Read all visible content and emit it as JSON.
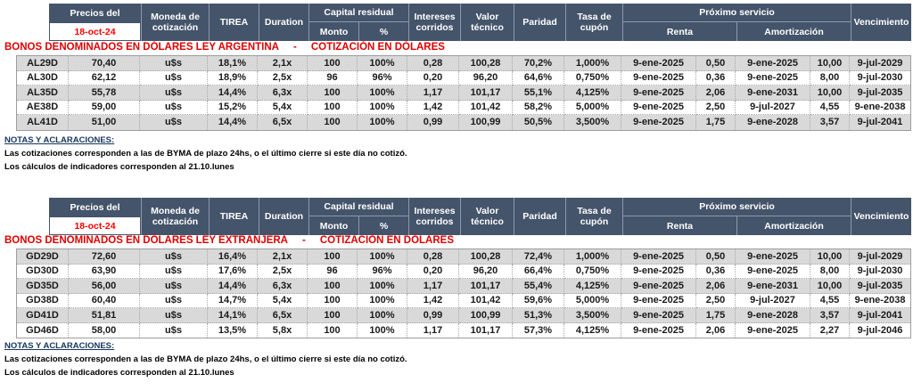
{
  "header": {
    "precios_label": "Precios del",
    "date": "18-oct-24",
    "moneda": "Moneda de cotización",
    "tirea": "TIREA",
    "duration": "Duration",
    "capital_residual": "Capital residual",
    "monto": "Monto",
    "pct": "%",
    "intereses": "Intereses corridos",
    "valor_tecnico": "Valor técnico",
    "paridad": "Paridad",
    "tasa_cupon": "Tasa de cupón",
    "proximo_servicio": "Próximo servicio",
    "renta": "Renta",
    "amortizacion": "Amortización",
    "vencimiento": "Vencimiento"
  },
  "colors": {
    "header_bg": "#44546A",
    "title_red": "#E00000",
    "date_red": "#FF0000",
    "row_band": "#D9D9D9"
  },
  "tables": [
    {
      "title_left": "BONOS DENOMINADOS EN DÓLARES LEY ARGENTINA",
      "title_sep": "-",
      "title_right": "COTIZACIÓN EN DÓLARES",
      "rows": [
        [
          "AL29D",
          "70,40",
          "u$s",
          "18,1%",
          "2,1x",
          "100",
          "100%",
          "0,28",
          "100,28",
          "70,2%",
          "1,000%",
          "9-ene-2025",
          "0,50",
          "9-ene-2025",
          "10,00",
          "9-jul-2029"
        ],
        [
          "AL30D",
          "62,12",
          "u$s",
          "18,9%",
          "2,5x",
          "96",
          "96%",
          "0,20",
          "96,20",
          "64,6%",
          "0,750%",
          "9-ene-2025",
          "0,36",
          "9-ene-2025",
          "8,00",
          "9-jul-2030"
        ],
        [
          "AL35D",
          "55,78",
          "u$s",
          "14,4%",
          "6,3x",
          "100",
          "100%",
          "1,17",
          "101,17",
          "55,1%",
          "4,125%",
          "9-ene-2025",
          "2,06",
          "9-ene-2031",
          "10,00",
          "9-jul-2035"
        ],
        [
          "AE38D",
          "59,00",
          "u$s",
          "15,2%",
          "5,4x",
          "100",
          "100%",
          "1,42",
          "101,42",
          "58,2%",
          "5,000%",
          "9-ene-2025",
          "2,50",
          "9-jul-2027",
          "4,55",
          "9-ene-2038"
        ],
        [
          "AL41D",
          "51,00",
          "u$s",
          "14,4%",
          "6,5x",
          "100",
          "100%",
          "0,99",
          "100,99",
          "50,5%",
          "3,500%",
          "9-ene-2025",
          "1,75",
          "9-ene-2028",
          "3,57",
          "9-jul-2041"
        ]
      ]
    },
    {
      "title_left": "BONOS DENOMINADOS EN DÓLARES LEY EXTRANJERA",
      "title_sep": "-",
      "title_right": "COTIZACIÓN EN DÓLARES",
      "rows": [
        [
          "GD29D",
          "72,60",
          "u$s",
          "16,4%",
          "2,1x",
          "100",
          "100%",
          "0,28",
          "100,28",
          "72,4%",
          "1,000%",
          "9-ene-2025",
          "0,50",
          "9-ene-2025",
          "10,00",
          "9-jul-2029"
        ],
        [
          "GD30D",
          "63,90",
          "u$s",
          "17,6%",
          "2,5x",
          "96",
          "96%",
          "0,20",
          "96,20",
          "66,4%",
          "0,750%",
          "9-ene-2025",
          "0,36",
          "9-ene-2025",
          "8,00",
          "9-jul-2030"
        ],
        [
          "GD35D",
          "56,00",
          "u$s",
          "14,4%",
          "6,3x",
          "100",
          "100%",
          "1,17",
          "101,17",
          "55,4%",
          "4,125%",
          "9-ene-2025",
          "2,06",
          "9-ene-2031",
          "10,00",
          "9-jul-2035"
        ],
        [
          "GD38D",
          "60,40",
          "u$s",
          "14,7%",
          "5,4x",
          "100",
          "100%",
          "1,42",
          "101,42",
          "59,6%",
          "5,000%",
          "9-ene-2025",
          "2,50",
          "9-jul-2027",
          "4,55",
          "9-ene-2038"
        ],
        [
          "GD41D",
          "51,81",
          "u$s",
          "14,1%",
          "6,5x",
          "100",
          "100%",
          "0,99",
          "100,99",
          "51,3%",
          "3,500%",
          "9-ene-2025",
          "1,75",
          "9-ene-2028",
          "3,57",
          "9-jul-2041"
        ],
        [
          "GD46D",
          "58,00",
          "u$s",
          "13,5%",
          "5,8x",
          "100",
          "100%",
          "1,17",
          "101,17",
          "57,3%",
          "4,125%",
          "9-ene-2025",
          "2,06",
          "9-ene-2025",
          "2,27",
          "9-jul-2046"
        ]
      ]
    }
  ],
  "notes": {
    "heading": "NOTAS Y ACLARACIONES:",
    "line1": "Las cotizaciones corresponden a las de BYMA de plazo 24hs, o el último cierre si este día no cotizó.",
    "line2": "Los cálculos de indicadores corresponden al 21.10.lunes"
  },
  "column_keys": [
    "ticker",
    "precio",
    "moneda",
    "tirea",
    "duration",
    "capital-monto",
    "capital-pct",
    "intereses-corridos",
    "valor-tecnico",
    "paridad",
    "tasa-cupon",
    "renta-fecha",
    "renta-monto",
    "amortizacion-fecha",
    "amortizacion-monto",
    "vencimiento"
  ]
}
